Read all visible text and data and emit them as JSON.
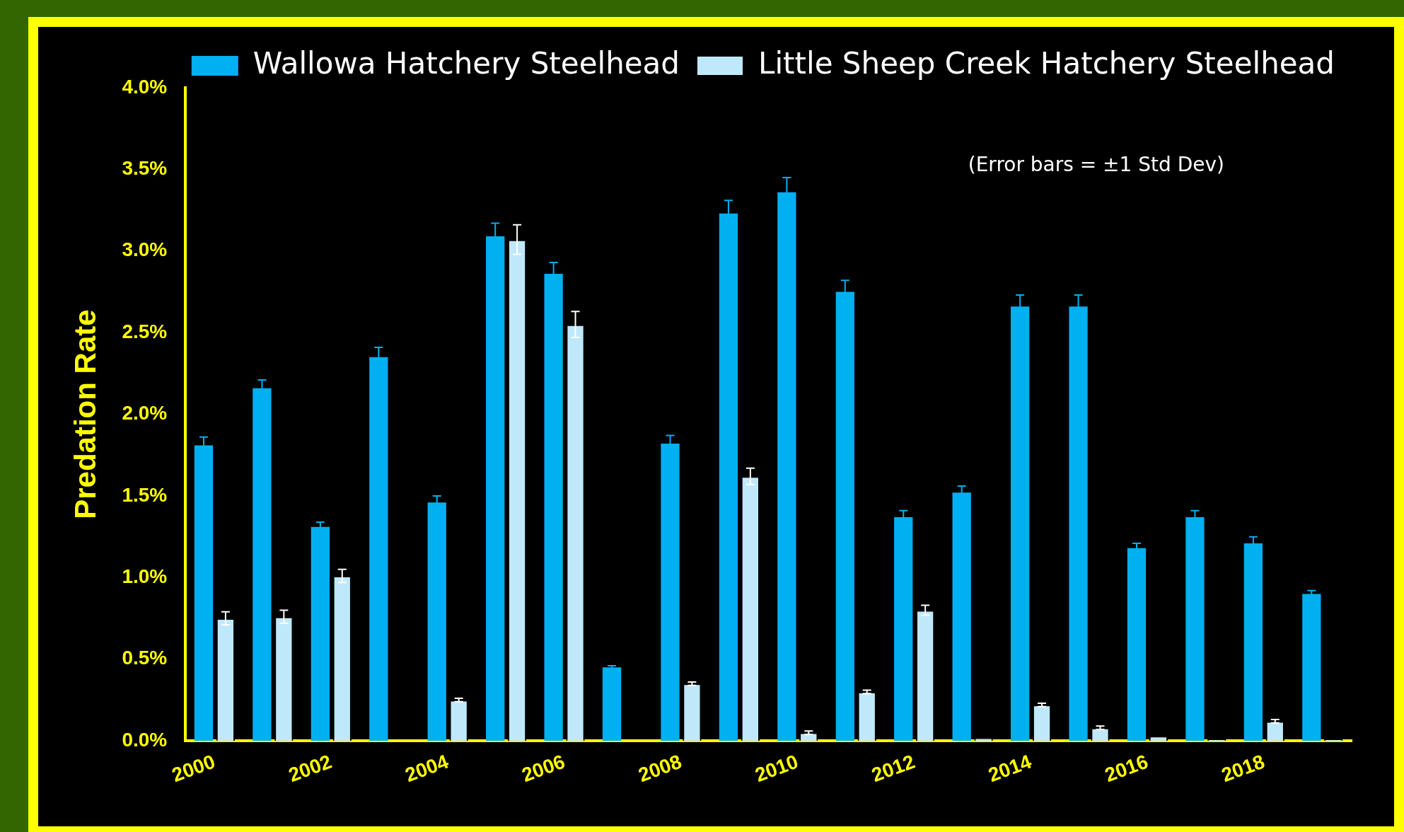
{
  "chart_data": {
    "type": "bar",
    "ylabel": "Predation Rate",
    "categories": [
      "2000",
      null,
      "2002",
      null,
      "2004",
      null,
      "2006",
      null,
      "2008",
      null,
      "2010",
      null,
      "2012",
      null,
      "2014",
      null,
      "2016",
      null,
      "2018",
      null
    ],
    "series": [
      {
        "name": "Wallowa Hatchery Steelhead",
        "color": "#00b0f0",
        "values": [
          1.81,
          2.16,
          1.31,
          2.35,
          1.46,
          3.09,
          2.86,
          0.45,
          1.82,
          3.23,
          3.36,
          2.75,
          1.37,
          1.52,
          2.66,
          2.66,
          1.18,
          1.37,
          1.21,
          0.9
        ],
        "errors": [
          0.05,
          0.05,
          0.03,
          0.06,
          0.04,
          0.08,
          0.07,
          0.01,
          0.05,
          0.08,
          0.09,
          0.07,
          0.04,
          0.04,
          0.07,
          0.07,
          0.03,
          0.04,
          0.04,
          0.02
        ]
      },
      {
        "name": "Little Sheep Creek Hatchery Steelhead",
        "color": "#bfe9fb",
        "values": [
          0.75,
          0.76,
          1.01,
          null,
          0.25,
          3.07,
          2.55,
          null,
          0.35,
          1.62,
          0.05,
          0.3,
          0.8,
          0.02,
          0.22,
          0.08,
          0.03,
          0.01,
          0.12,
          0.01
        ],
        "errors": [
          0.04,
          0.04,
          0.04,
          null,
          0.01,
          0.09,
          0.08,
          null,
          0.01,
          0.05,
          0.01,
          0.01,
          0.03,
          null,
          0.01,
          0.01,
          null,
          null,
          0.01,
          null
        ]
      }
    ],
    "ylim": [
      0,
      4
    ],
    "yticks": [
      {
        "value": 0,
        "label": "0.0%"
      },
      {
        "value": 0.5,
        "label": "0.5%"
      },
      {
        "value": 1,
        "label": "1.0%"
      },
      {
        "value": 1.5,
        "label": "1.5%"
      },
      {
        "value": 2,
        "label": "2.0%"
      },
      {
        "value": 2.5,
        "label": "2.5%"
      },
      {
        "value": 3,
        "label": "3.0%"
      },
      {
        "value": 3.5,
        "label": "3.5%"
      },
      {
        "value": 4,
        "label": "4.0%"
      }
    ],
    "grid": false,
    "legend": "top right",
    "annotations": [
      "(Error bars = ±1 Std Dev)"
    ]
  }
}
